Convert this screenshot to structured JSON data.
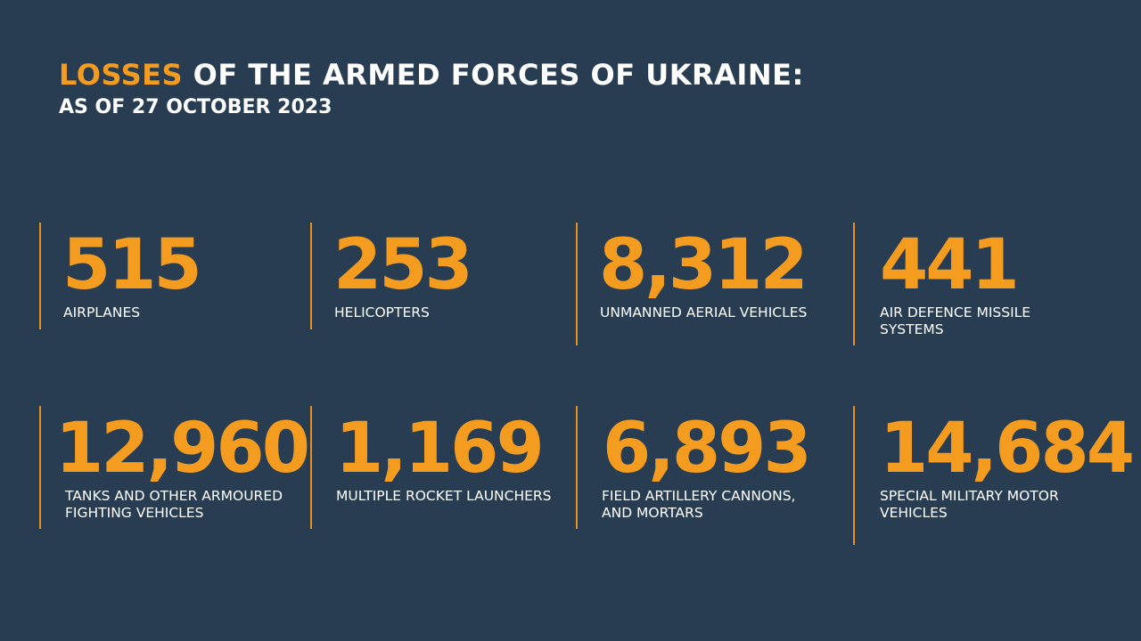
{
  "header": {
    "title_accent": "LOSSES",
    "title_rest": " OF THE ARMED FORCES OF UKRAINE:",
    "subtitle": "AS OF 27 OCTOBER 2023"
  },
  "stats": [
    {
      "value": "515",
      "label": "AIRPLANES"
    },
    {
      "value": "253",
      "label": "HELICOPTERS"
    },
    {
      "value": "8,312",
      "label": "UNMANNED AERIAL VEHICLES"
    },
    {
      "value": "441",
      "label": "AIR DEFENCE MISSILE\nSYSTEMS"
    },
    {
      "value": "12,960",
      "label": "TANKS AND OTHER ARMOURED\nFIGHTING VEHICLES"
    },
    {
      "value": "1,169",
      "label": "MULTIPLE ROCKET LAUNCHERS"
    },
    {
      "value": "6,893",
      "label": "FIELD ARTILLERY CANNONS,\nAND MORTARS"
    },
    {
      "value": "14,684",
      "label": "SPECIAL MILITARY MOTOR\nVEHICLES"
    }
  ],
  "colors": {
    "background": "#283d52",
    "accent": "#f39c1f",
    "text": "#ffffff"
  }
}
